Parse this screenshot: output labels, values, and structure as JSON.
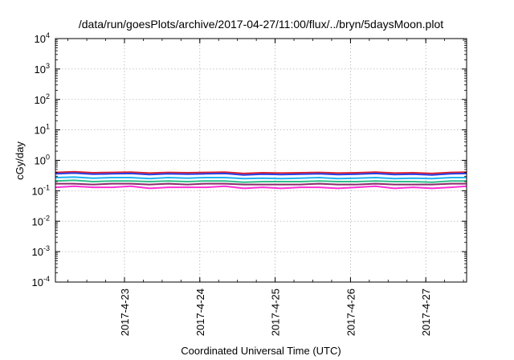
{
  "chart_data": {
    "type": "line",
    "title": "/data/run/goesPlots/archive/2017-04-27/11:00/flux/../bryn/5daysMoon.plot",
    "xlabel": "Coordinated Universal Time (UTC)",
    "ylabel": "cGy/day",
    "xlim": [
      "2017-04-22 02:00",
      "2017-04-27 13:00"
    ],
    "ylim": [
      0.0001,
      10000
    ],
    "yscale": "log",
    "grid": true,
    "x_ticks": [
      "2017-4-23",
      "2017-4-24",
      "2017-4-25",
      "2017-4-26",
      "2017-4-27"
    ],
    "y_ticks": [
      {
        "value": 0.0001,
        "base": "10",
        "exp": "-4"
      },
      {
        "value": 0.001,
        "base": "10",
        "exp": "-3"
      },
      {
        "value": 0.01,
        "base": "10",
        "exp": "-2"
      },
      {
        "value": 0.1,
        "base": "10",
        "exp": "-1"
      },
      {
        "value": 1,
        "base": "10",
        "exp": "0"
      },
      {
        "value": 10,
        "base": "10",
        "exp": "1"
      },
      {
        "value": 100,
        "base": "10",
        "exp": "2"
      },
      {
        "value": 1000,
        "base": "10",
        "exp": "3"
      },
      {
        "value": 10000,
        "base": "10",
        "exp": "4"
      }
    ],
    "x": [
      "2017-04-22 02:00",
      "2017-04-22 08:00",
      "2017-04-22 14:00",
      "2017-04-22 20:00",
      "2017-04-23 02:00",
      "2017-04-23 08:00",
      "2017-04-23 14:00",
      "2017-04-23 20:00",
      "2017-04-24 02:00",
      "2017-04-24 08:00",
      "2017-04-24 14:00",
      "2017-04-24 20:00",
      "2017-04-25 02:00",
      "2017-04-25 08:00",
      "2017-04-25 14:00",
      "2017-04-25 20:00",
      "2017-04-26 02:00",
      "2017-04-26 08:00",
      "2017-04-26 14:00",
      "2017-04-26 20:00",
      "2017-04-27 02:00",
      "2017-04-27 08:00",
      "2017-04-27 13:00"
    ],
    "series": [
      {
        "color": "#e0202a",
        "values": [
          0.4,
          0.42,
          0.39,
          0.4,
          0.41,
          0.38,
          0.4,
          0.39,
          0.4,
          0.41,
          0.37,
          0.39,
          0.38,
          0.39,
          0.4,
          0.38,
          0.39,
          0.41,
          0.38,
          0.39,
          0.37,
          0.4,
          0.41
        ]
      },
      {
        "color": "#2a3fe6",
        "values": [
          0.36,
          0.38,
          0.35,
          0.36,
          0.37,
          0.34,
          0.36,
          0.35,
          0.36,
          0.37,
          0.33,
          0.35,
          0.34,
          0.35,
          0.36,
          0.34,
          0.35,
          0.37,
          0.34,
          0.35,
          0.33,
          0.36,
          0.37
        ]
      },
      {
        "color": "#1fb3f0",
        "values": [
          0.27,
          0.28,
          0.26,
          0.27,
          0.27,
          0.25,
          0.27,
          0.26,
          0.27,
          0.27,
          0.25,
          0.26,
          0.25,
          0.26,
          0.27,
          0.25,
          0.26,
          0.27,
          0.25,
          0.26,
          0.25,
          0.27,
          0.27
        ]
      },
      {
        "color": "#2fbf8a",
        "values": [
          0.21,
          0.22,
          0.2,
          0.21,
          0.21,
          0.2,
          0.21,
          0.2,
          0.21,
          0.21,
          0.19,
          0.2,
          0.2,
          0.2,
          0.21,
          0.2,
          0.2,
          0.21,
          0.2,
          0.2,
          0.19,
          0.21,
          0.21
        ]
      },
      {
        "color": "#8a2a6a",
        "values": [
          0.17,
          0.17,
          0.16,
          0.17,
          0.17,
          0.16,
          0.17,
          0.16,
          0.17,
          0.17,
          0.16,
          0.16,
          0.16,
          0.16,
          0.17,
          0.16,
          0.16,
          0.17,
          0.16,
          0.16,
          0.16,
          0.17,
          0.17
        ]
      },
      {
        "color": "#ff2fd8",
        "values": [
          0.13,
          0.14,
          0.13,
          0.13,
          0.14,
          0.12,
          0.13,
          0.13,
          0.13,
          0.14,
          0.12,
          0.13,
          0.12,
          0.13,
          0.13,
          0.12,
          0.13,
          0.14,
          0.12,
          0.13,
          0.12,
          0.13,
          0.14
        ]
      }
    ]
  }
}
